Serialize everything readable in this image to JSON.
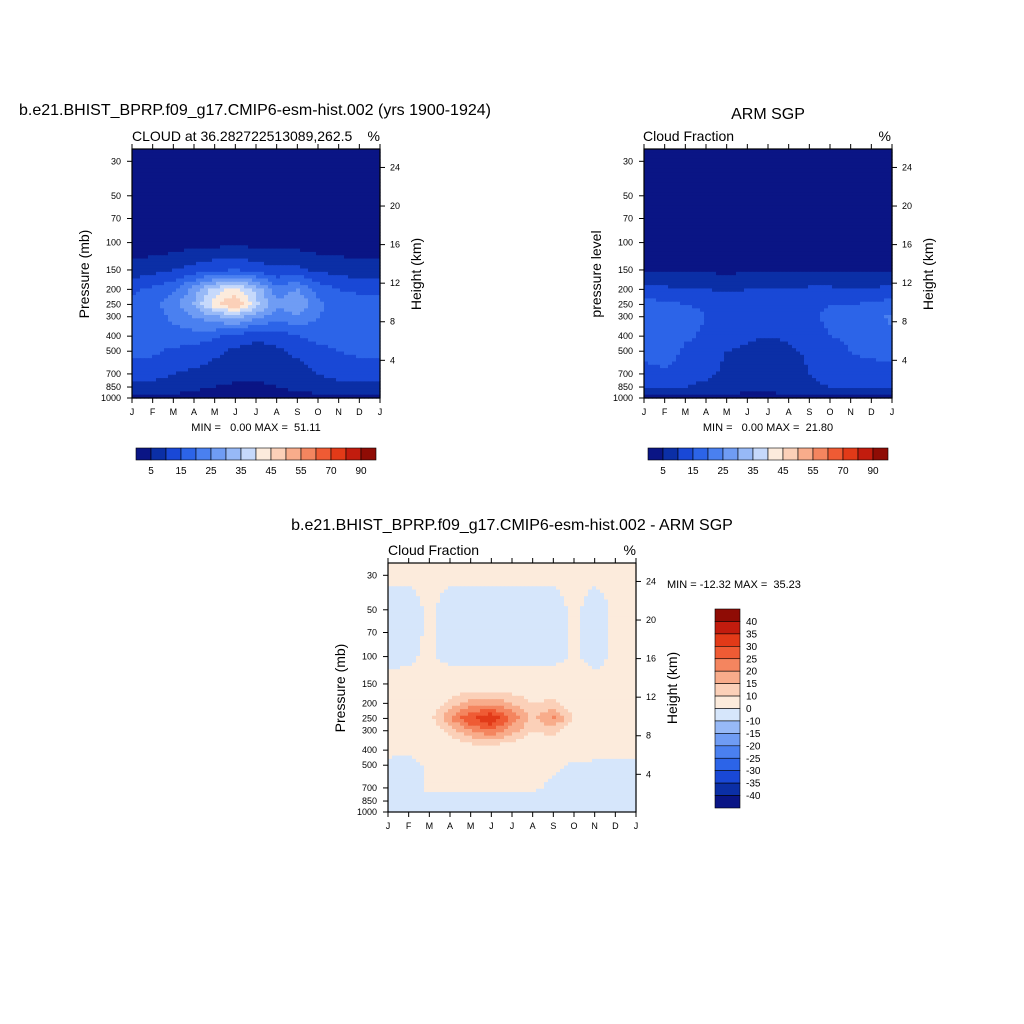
{
  "months": [
    "J",
    "F",
    "M",
    "A",
    "M",
    "J",
    "J",
    "A",
    "S",
    "O",
    "N",
    "D",
    "J"
  ],
  "pressure_ticks": [
    30,
    50,
    70,
    100,
    150,
    200,
    250,
    300,
    400,
    500,
    700,
    850,
    1000
  ],
  "height_ticks": [
    4,
    8,
    12,
    16,
    20,
    24
  ],
  "colors": {
    "seq": [
      "#0a1585",
      "#0b2fa6",
      "#1948d6",
      "#2c64e8",
      "#4a80f0",
      "#6f9cf4",
      "#97b9f7",
      "#c6d9fb",
      "#fcebdc",
      "#fbd0b8",
      "#f8ac8b",
      "#f4855f",
      "#ef5b34",
      "#e23a18",
      "#c21c0e",
      "#8f0c05"
    ],
    "diff": [
      "#0a1585",
      "#0b2fa6",
      "#1948d6",
      "#2c64e8",
      "#4a80f0",
      "#6f9cf4",
      "#97b9f7",
      "#d6e6fb",
      "#fcebdc",
      "#fbd0b8",
      "#f8ac8b",
      "#f4855f",
      "#ef5b34",
      "#e23a18",
      "#c21c0e",
      "#8f0c05"
    ]
  },
  "labelbar": {
    "seq_labels": [
      "5",
      "15",
      "25",
      "35",
      "45",
      "55",
      "70",
      "90"
    ],
    "diff_labels": [
      "40",
      "35",
      "30",
      "25",
      "20",
      "15",
      "10",
      "0",
      "-10",
      "-15",
      "-20",
      "-25",
      "-30",
      "-35",
      "-40"
    ]
  },
  "chart_data": [
    {
      "type": "heatmap",
      "title": "b.e21.BHIST_BPRP.f09_g17.CMIP6-esm-hist.002 (yrs 1900-1924)",
      "left_string": "CLOUD at 36.282722513089,262.5",
      "right_string": "%",
      "ylabel": "Pressure (mb)",
      "y2label": "Height (km)",
      "stats": "MIN =   0.00 MAX =  51.11",
      "min": 0.0,
      "max": 51.11,
      "x": [
        "J",
        "F",
        "M",
        "A",
        "M",
        "J",
        "J",
        "A",
        "S",
        "O",
        "N",
        "D",
        "J"
      ],
      "y_levels_mb": [
        1000,
        850,
        700,
        500,
        400,
        300,
        250,
        200,
        150,
        100,
        70,
        50,
        30
      ],
      "values": [
        [
          3,
          3,
          3,
          3,
          3,
          3,
          3,
          3,
          3,
          3,
          3,
          3,
          3
        ],
        [
          8,
          8,
          8,
          6,
          5,
          4,
          4,
          5,
          6,
          8,
          8,
          8,
          8
        ],
        [
          12,
          12,
          10,
          9,
          8,
          7,
          6,
          7,
          8,
          10,
          12,
          12,
          12
        ],
        [
          16,
          16,
          14,
          13,
          11,
          9,
          8,
          9,
          11,
          13,
          15,
          16,
          16
        ],
        [
          17,
          17,
          18,
          18,
          16,
          13,
          11,
          12,
          15,
          17,
          18,
          18,
          17
        ],
        [
          18,
          18,
          21,
          25,
          29,
          32,
          27,
          22,
          24,
          20,
          19,
          18,
          18
        ],
        [
          17,
          18,
          23,
          31,
          43,
          51,
          37,
          26,
          30,
          21,
          18,
          17,
          17
        ],
        [
          14,
          16,
          19,
          27,
          37,
          42,
          33,
          22,
          25,
          18,
          15,
          14,
          14
        ],
        [
          7,
          8,
          10,
          12,
          14,
          15,
          13,
          11,
          11,
          9,
          8,
          7,
          7
        ],
        [
          2,
          2,
          2,
          3,
          3,
          4,
          3,
          3,
          3,
          2,
          2,
          2,
          2
        ],
        [
          1,
          1,
          1,
          1,
          1,
          1,
          1,
          1,
          1,
          1,
          1,
          1,
          1
        ],
        [
          1,
          1,
          1,
          1,
          1,
          1,
          1,
          1,
          1,
          1,
          1,
          1,
          1
        ],
        [
          1,
          1,
          1,
          1,
          1,
          1,
          1,
          1,
          1,
          1,
          1,
          1,
          1
        ]
      ],
      "levels": [
        5,
        10,
        15,
        20,
        25,
        30,
        35,
        40,
        45,
        50,
        55,
        60,
        70,
        80,
        90
      ]
    },
    {
      "type": "heatmap",
      "title": "ARM SGP",
      "left_string": "Cloud Fraction",
      "right_string": "%",
      "ylabel": "pressure level",
      "y2label": "Height (km)",
      "stats": "MIN =   0.00 MAX =  21.80",
      "min": 0.0,
      "max": 21.8,
      "x": [
        "J",
        "F",
        "M",
        "A",
        "M",
        "J",
        "J",
        "A",
        "S",
        "O",
        "N",
        "D",
        "J"
      ],
      "y_levels_mb": [
        1000,
        850,
        700,
        500,
        400,
        300,
        250,
        200,
        150,
        100,
        70,
        50,
        30
      ],
      "values": [
        [
          3,
          3,
          3,
          3,
          3,
          3,
          3,
          3,
          3,
          3,
          3,
          3,
          3
        ],
        [
          10,
          11,
          10,
          9,
          8,
          7,
          7,
          8,
          9,
          10,
          11,
          11,
          11
        ],
        [
          13,
          14,
          12,
          11,
          9,
          7,
          5,
          7,
          10,
          12,
          14,
          13,
          13
        ],
        [
          17,
          18,
          14,
          12,
          10,
          9,
          8,
          9,
          11,
          13,
          15,
          16,
          17
        ],
        [
          19,
          20,
          16,
          14,
          12,
          11,
          10,
          11,
          13,
          15,
          16,
          18,
          19
        ],
        [
          20,
          19,
          17,
          15,
          13,
          12,
          11,
          12,
          14,
          16,
          16,
          18,
          21
        ],
        [
          17,
          16,
          15,
          14,
          13,
          13,
          12,
          13,
          14,
          15,
          15,
          16,
          17
        ],
        [
          12,
          11,
          10,
          10,
          9,
          10,
          10,
          10,
          11,
          11,
          10,
          10,
          12
        ],
        [
          4,
          4,
          4,
          4,
          4,
          4,
          4,
          4,
          4,
          4,
          4,
          4,
          4
        ],
        [
          1,
          1,
          1,
          1,
          1,
          1,
          1,
          1,
          1,
          1,
          1,
          1,
          1
        ],
        [
          1,
          1,
          1,
          1,
          1,
          1,
          1,
          1,
          1,
          1,
          1,
          1,
          1
        ],
        [
          1,
          1,
          1,
          1,
          1,
          1,
          1,
          1,
          1,
          1,
          1,
          1,
          1
        ],
        [
          1,
          1,
          1,
          1,
          1,
          1,
          1,
          1,
          1,
          1,
          1,
          1,
          1
        ]
      ],
      "levels": [
        5,
        10,
        15,
        20,
        25,
        30,
        35,
        40,
        45,
        50,
        55,
        60,
        70,
        80,
        90
      ]
    },
    {
      "type": "heatmap",
      "title": "b.e21.BHIST_BPRP.f09_g17.CMIP6-esm-hist.002 - ARM SGP",
      "left_string": "Cloud Fraction",
      "right_string": "%",
      "ylabel": "Pressure (mb)",
      "y2label": "Height (km)",
      "stats": "MIN = -12.32 MAX =  35.23",
      "min": -12.32,
      "max": 35.23,
      "x": [
        "J",
        "F",
        "M",
        "A",
        "M",
        "J",
        "J",
        "A",
        "S",
        "O",
        "N",
        "D",
        "J"
      ],
      "y_levels_mb": [
        1000,
        850,
        700,
        500,
        400,
        300,
        250,
        200,
        150,
        100,
        70,
        50,
        30
      ],
      "values": [
        [
          0,
          0,
          0,
          0,
          0,
          0,
          0,
          0,
          0,
          0,
          0,
          0,
          0
        ],
        [
          -3,
          -3,
          -2,
          -2,
          -2,
          -3,
          -2,
          -2,
          -3,
          -3,
          -4,
          -3,
          -3
        ],
        [
          -2,
          -2,
          1,
          1,
          1,
          1,
          1,
          1,
          -1,
          -2,
          -2,
          -1,
          -1
        ],
        [
          -1,
          -2,
          1,
          2,
          2,
          1,
          1,
          1,
          1,
          -1,
          -1,
          -1,
          -1
        ],
        [
          1,
          1,
          2,
          4,
          5,
          5,
          4,
          4,
          4,
          3,
          2,
          1,
          1
        ],
        [
          1,
          2,
          5,
          12,
          20,
          25,
          17,
          10,
          12,
          5,
          4,
          1,
          1
        ],
        [
          2,
          3,
          8,
          20,
          30,
          35,
          24,
          14,
          21,
          10,
          6,
          2,
          2
        ],
        [
          2,
          3,
          5,
          12,
          17,
          19,
          15,
          10,
          12,
          6,
          3,
          2,
          2
        ],
        [
          2,
          2,
          3,
          4,
          5,
          5,
          5,
          4,
          4,
          3,
          2,
          2,
          2
        ],
        [
          -2,
          -1,
          1,
          -2,
          -2,
          -2,
          -2,
          -2,
          -2,
          1,
          -2,
          1,
          1
        ],
        [
          -2,
          -2,
          1,
          -2,
          -2,
          -2,
          -2,
          -2,
          -2,
          1,
          -2,
          1,
          1
        ],
        [
          -2,
          -2,
          1,
          -2,
          -2,
          -2,
          -2,
          -2,
          -2,
          1,
          -2,
          1,
          1
        ],
        [
          1,
          1,
          1,
          1,
          1,
          1,
          1,
          1,
          1,
          1,
          1,
          1,
          1
        ]
      ],
      "levels": [
        -40,
        -35,
        -30,
        -25,
        -20,
        -15,
        -10,
        0,
        10,
        15,
        20,
        25,
        30,
        35,
        40
      ]
    }
  ]
}
